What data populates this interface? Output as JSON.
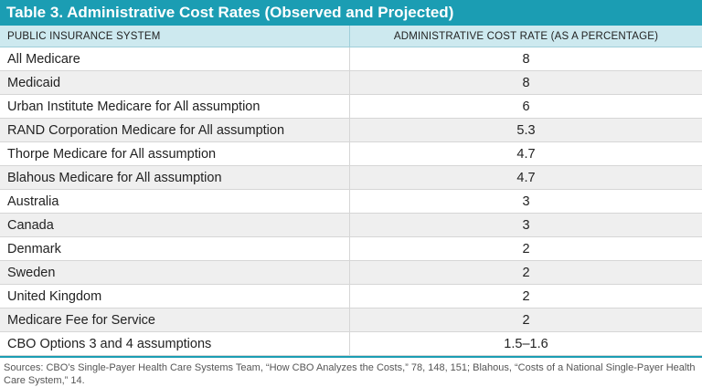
{
  "table": {
    "title": "Table 3. Administrative Cost Rates (Observed and Projected)",
    "header": [
      "PUBLIC INSURANCE SYSTEM",
      "ADMINISTRATIVE COST RATE (AS A PERCENTAGE)"
    ],
    "rows": [
      [
        "All Medicare",
        "8"
      ],
      [
        "Medicaid",
        "8"
      ],
      [
        "Urban Institute Medicare for All assumption",
        "6"
      ],
      [
        "RAND Corporation Medicare for All assumption",
        "5.3"
      ],
      [
        "Thorpe Medicare for All assumption",
        "4.7"
      ],
      [
        "Blahous Medicare for All assumption",
        "4.7"
      ],
      [
        "Australia",
        "3"
      ],
      [
        "Canada",
        "3"
      ],
      [
        "Denmark",
        "2"
      ],
      [
        "Sweden",
        "2"
      ],
      [
        "United Kingdom",
        "2"
      ],
      [
        "Medicare Fee for Service",
        "2"
      ],
      [
        "CBO Options 3 and 4 assumptions",
        "1.5–1.6"
      ]
    ],
    "source": "Sources: CBO’s Single-Payer Health Care Systems Team, “How CBO Analyzes the Costs,” 78, 148, 151; Blahous, “Costs of a National Single-Payer Health Care System,” 14."
  }
}
